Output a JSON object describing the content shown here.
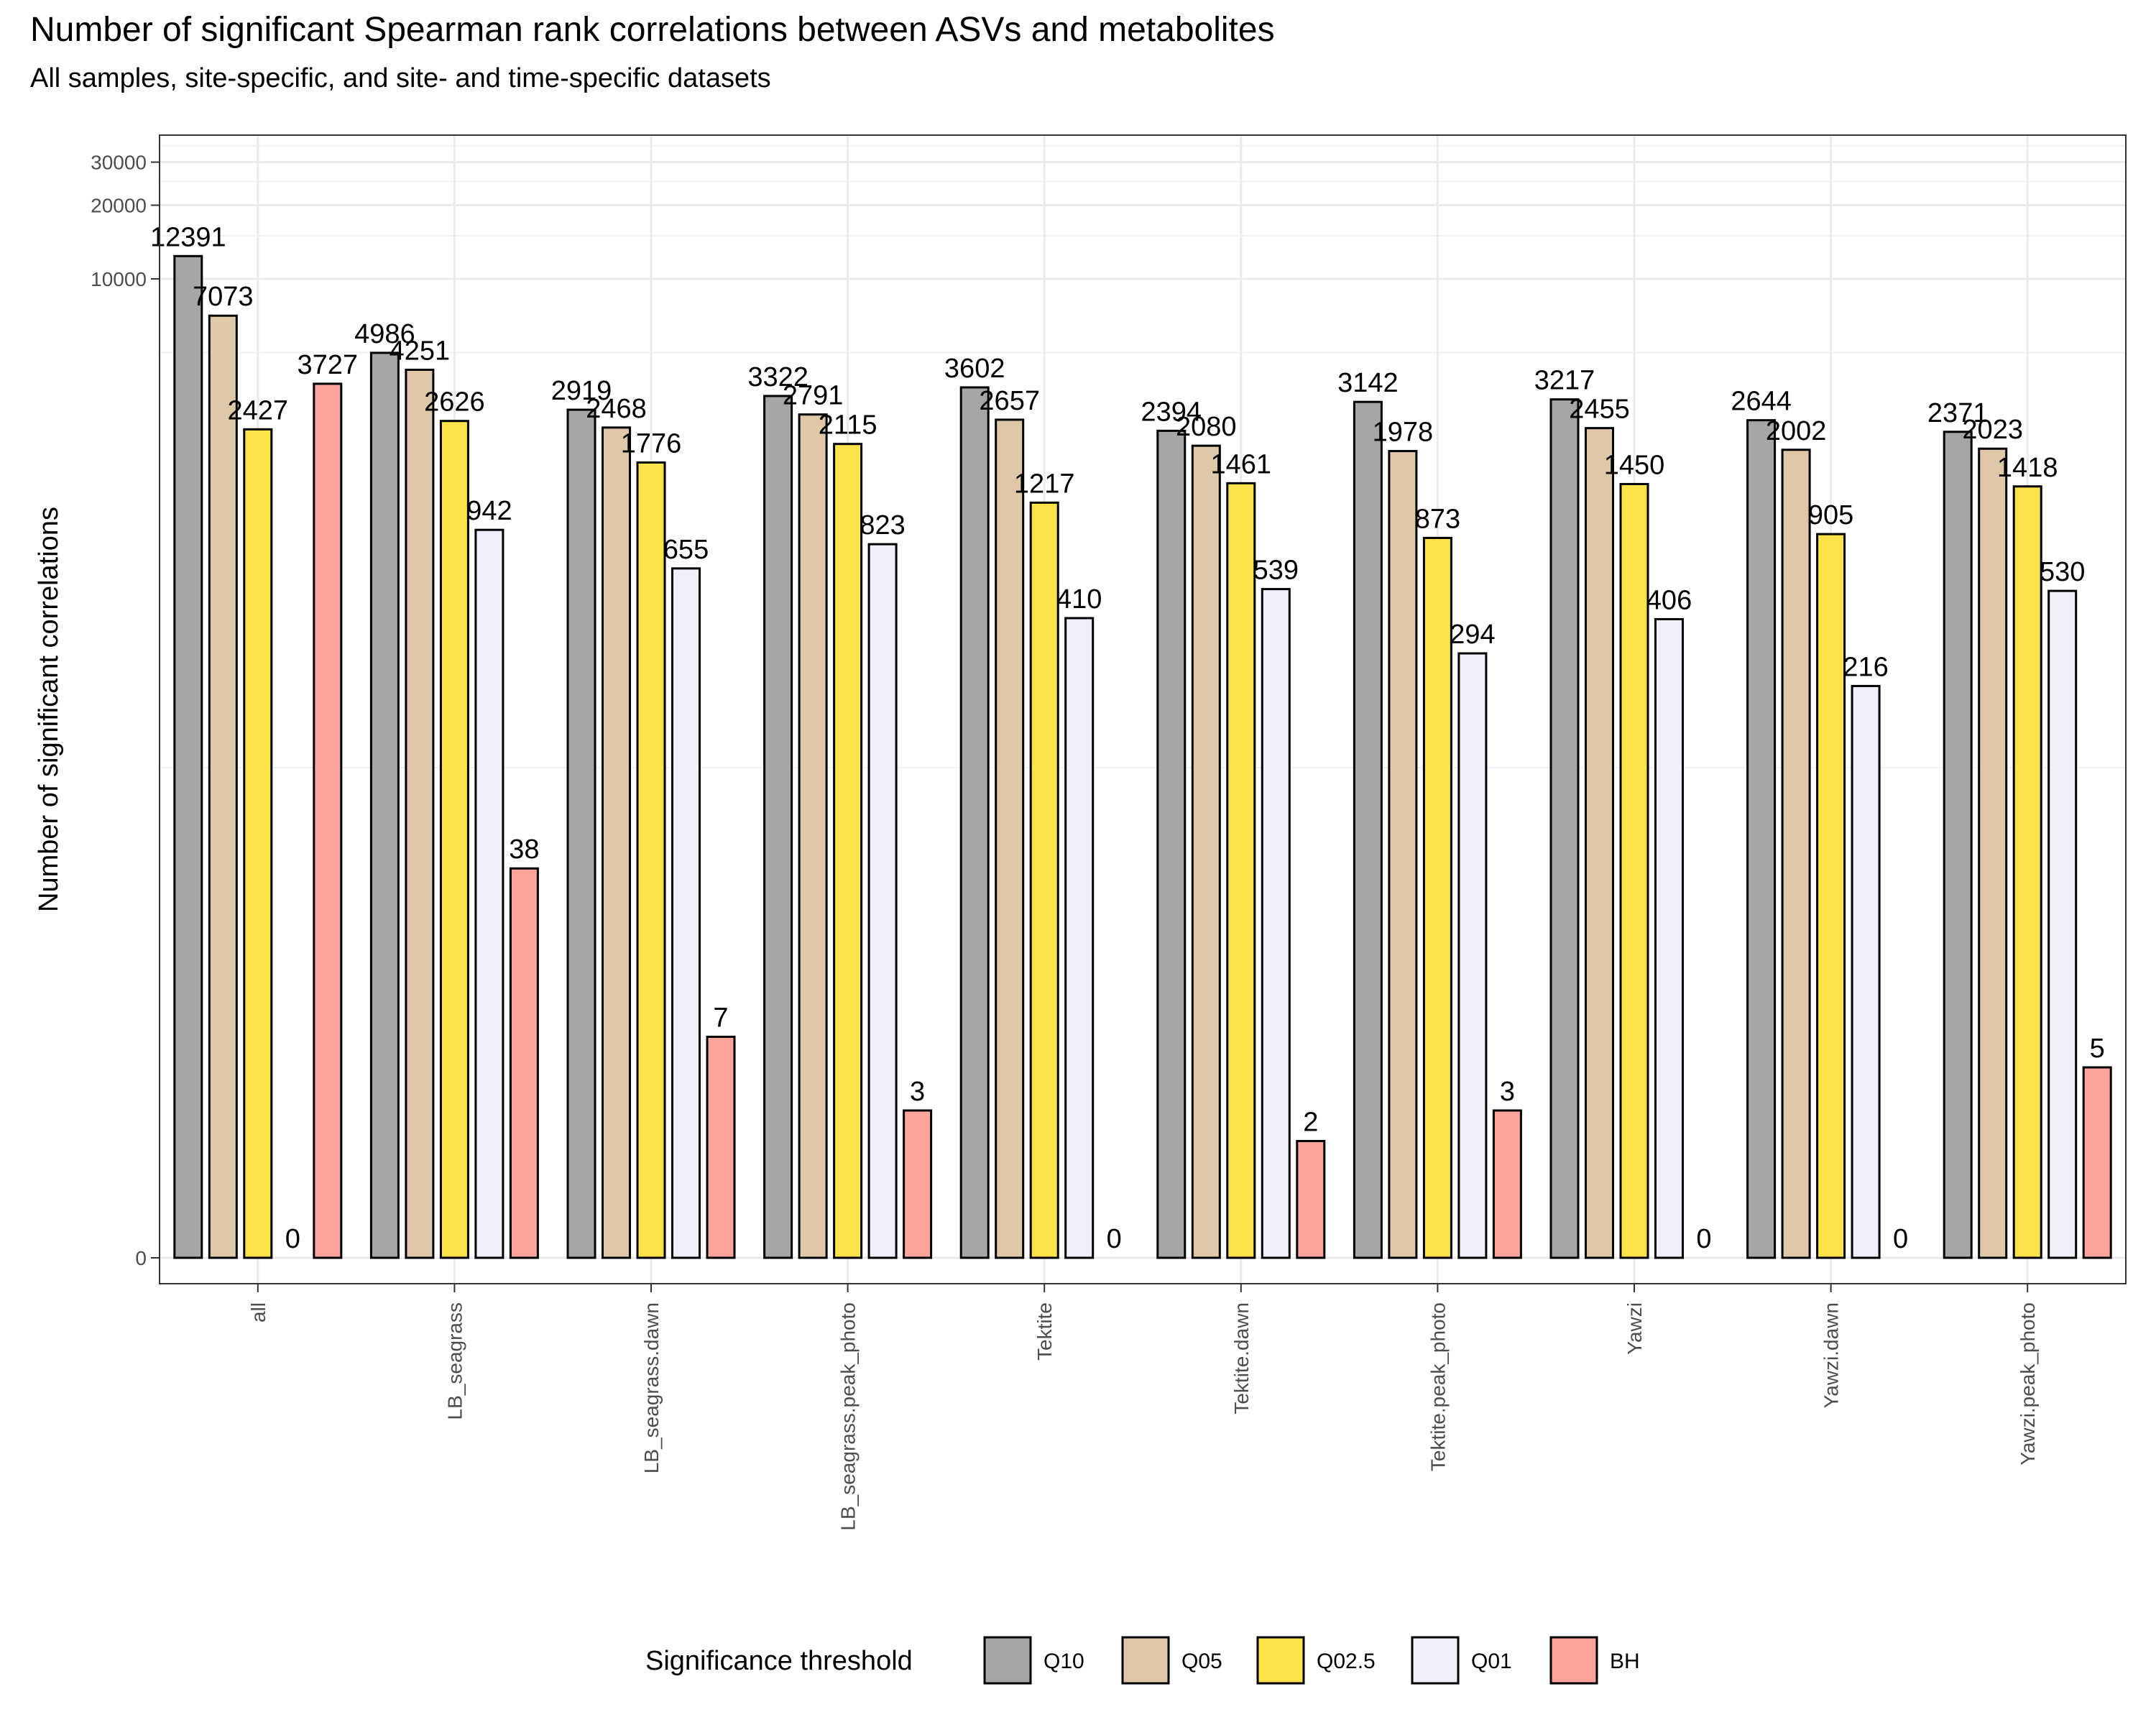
{
  "chart_data": {
    "type": "bar",
    "title": "Number of significant Spearman rank correlations between ASVs and metabolites",
    "subtitle": "All samples, site-specific, and site- and time-specific datasets",
    "xlabel": "",
    "ylabel": "Number of significant correlations",
    "y_scale": "pseudo-log",
    "y_ticks": [
      0,
      10000,
      20000,
      30000
    ],
    "y_tick_labels": [
      "0",
      "10000",
      "20000",
      "30000"
    ],
    "ylim": [
      0,
      36000
    ],
    "grid": true,
    "legend_title": "Significance threshold",
    "legend_position": "bottom",
    "categories": [
      "all",
      "LB_seagrass",
      "LB_seagrass.dawn",
      "LB_seagrass.peak_photo",
      "Tektite",
      "Tektite.dawn",
      "Tektite.peak_photo",
      "Yawzi",
      "Yawzi.dawn",
      "Yawzi.peak_photo"
    ],
    "series": [
      {
        "name": "Q10",
        "color": "#a6a6a6",
        "values": [
          12391,
          4986,
          2919,
          3322,
          3602,
          2394,
          3142,
          3217,
          2644,
          2371
        ]
      },
      {
        "name": "Q05",
        "color": "#dfc8a8",
        "values": [
          7073,
          4251,
          2468,
          2791,
          2657,
          2080,
          1978,
          2455,
          2002,
          2023
        ]
      },
      {
        "name": "Q02.5",
        "color": "#fce34a",
        "values": [
          2427,
          2626,
          1776,
          2115,
          1217,
          1461,
          873,
          1450,
          905,
          1418
        ]
      },
      {
        "name": "Q01",
        "color": "#f0f0fb",
        "values": [
          0,
          942,
          655,
          823,
          410,
          539,
          294,
          406,
          216,
          530
        ]
      },
      {
        "name": "BH",
        "color": "#fba59b",
        "values": [
          3727,
          38,
          7,
          3,
          0,
          2,
          3,
          0,
          0,
          5
        ]
      }
    ]
  }
}
